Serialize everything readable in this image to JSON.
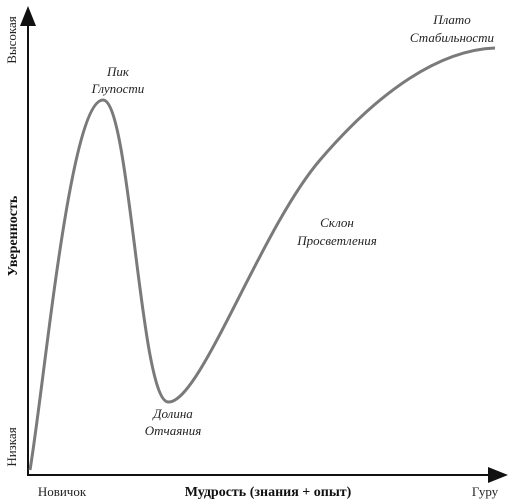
{
  "axes": {
    "y_title": "Уверенность",
    "y_high": "Высокая",
    "y_low": "Низкая",
    "x_title": "Мудрость (знания + опыт)",
    "x_start": "Новичок",
    "x_end": "Гуру"
  },
  "annotations": [
    {
      "lines": [
        "Пик",
        "Глупости"
      ]
    },
    {
      "lines": [
        "Долина",
        "Отчаяния"
      ]
    },
    {
      "lines": [
        "Склон",
        "Просветления"
      ]
    },
    {
      "lines": [
        "Плато",
        "Стабильности"
      ]
    }
  ]
}
